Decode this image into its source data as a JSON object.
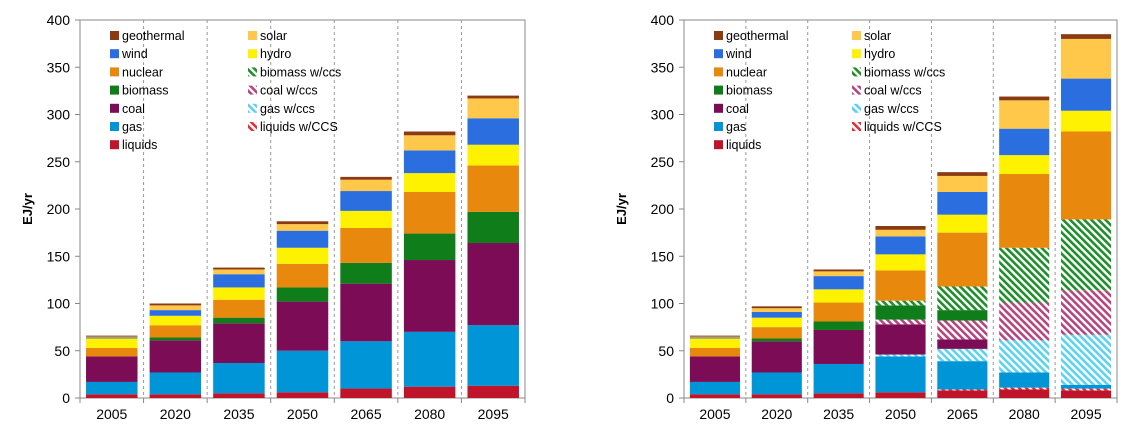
{
  "chart_data": [
    {
      "type": "bar",
      "stacked": true,
      "ylabel": "EJ/yr",
      "ylim": [
        0,
        400
      ],
      "yticks": [
        0,
        50,
        100,
        150,
        200,
        250,
        300,
        350,
        400
      ],
      "grid": "vertical dashed",
      "legend": "top-left",
      "categories": [
        "2005",
        "2020",
        "2035",
        "2050",
        "2065",
        "2080",
        "2095"
      ],
      "series": [
        {
          "name": "liquids",
          "color": "#C0142A",
          "pattern": "solid",
          "values": [
            4,
            4,
            5,
            6,
            10,
            12,
            13
          ]
        },
        {
          "name": "liquids w/CCS",
          "color": "#E0303A",
          "pattern": "hatch",
          "values": [
            0,
            0,
            0,
            0,
            0,
            0,
            0
          ]
        },
        {
          "name": "gas",
          "color": "#0095D6",
          "pattern": "solid",
          "values": [
            13,
            23,
            32,
            44,
            50,
            58,
            64
          ]
        },
        {
          "name": "gas w/ccs",
          "color": "#5AD2F0",
          "pattern": "hatch",
          "values": [
            0,
            0,
            0,
            0,
            0,
            0,
            0
          ]
        },
        {
          "name": "coal",
          "color": "#7B0C55",
          "pattern": "solid",
          "values": [
            27,
            34,
            42,
            52,
            61,
            76,
            87
          ]
        },
        {
          "name": "coal w/ccs",
          "color": "#B5457F",
          "pattern": "hatch",
          "values": [
            0,
            0,
            0,
            0,
            0,
            0,
            0
          ]
        },
        {
          "name": "biomass",
          "color": "#0E7D1A",
          "pattern": "solid",
          "values": [
            0,
            3,
            6,
            15,
            22,
            28,
            33
          ]
        },
        {
          "name": "biomass w/ccs",
          "color": "#1E8E2A",
          "pattern": "hatch",
          "values": [
            0,
            0,
            0,
            0,
            0,
            0,
            0
          ]
        },
        {
          "name": "nuclear",
          "color": "#E8880C",
          "pattern": "solid",
          "values": [
            9,
            13,
            19,
            25,
            37,
            44,
            49
          ]
        },
        {
          "name": "hydro",
          "color": "#FFF200",
          "pattern": "solid",
          "values": [
            10,
            10,
            13,
            17,
            18,
            20,
            22
          ]
        },
        {
          "name": "wind",
          "color": "#2B6EE0",
          "pattern": "solid",
          "values": [
            1,
            6,
            14,
            18,
            21,
            24,
            28
          ]
        },
        {
          "name": "solar",
          "color": "#FFC84A",
          "pattern": "solid",
          "values": [
            1,
            5,
            5,
            7,
            12,
            16,
            21
          ]
        },
        {
          "name": "geothermal",
          "color": "#8B3A12",
          "pattern": "solid",
          "values": [
            1,
            2,
            2,
            3,
            3,
            4,
            3
          ]
        }
      ]
    },
    {
      "type": "bar",
      "stacked": true,
      "ylabel": "EJ/yr",
      "ylim": [
        0,
        400
      ],
      "yticks": [
        0,
        50,
        100,
        150,
        200,
        250,
        300,
        350,
        400
      ],
      "grid": "vertical dashed",
      "legend": "top-left",
      "categories": [
        "2005",
        "2020",
        "2035",
        "2050",
        "2065",
        "2080",
        "2095"
      ],
      "series": [
        {
          "name": "liquids",
          "color": "#C0142A",
          "pattern": "solid",
          "values": [
            4,
            4,
            5,
            6,
            8,
            9,
            8
          ]
        },
        {
          "name": "liquids w/CCS",
          "color": "#E0303A",
          "pattern": "hatch",
          "values": [
            0,
            0,
            0,
            0,
            1,
            2,
            2
          ]
        },
        {
          "name": "gas",
          "color": "#0095D6",
          "pattern": "solid",
          "values": [
            13,
            23,
            31,
            38,
            30,
            16,
            4
          ]
        },
        {
          "name": "gas w/ccs",
          "color": "#5AD2F0",
          "pattern": "hatch",
          "values": [
            0,
            0,
            0,
            2,
            13,
            34,
            53
          ]
        },
        {
          "name": "coal",
          "color": "#7B0C55",
          "pattern": "solid",
          "values": [
            27,
            33,
            36,
            32,
            10,
            0,
            0
          ]
        },
        {
          "name": "coal w/ccs",
          "color": "#B5457F",
          "pattern": "hatch",
          "values": [
            0,
            0,
            0,
            5,
            20,
            40,
            47
          ]
        },
        {
          "name": "biomass",
          "color": "#0E7D1A",
          "pattern": "solid",
          "values": [
            0,
            3,
            9,
            15,
            11,
            0,
            0
          ]
        },
        {
          "name": "biomass w/ccs",
          "color": "#1E8E2A",
          "pattern": "hatch",
          "values": [
            0,
            0,
            0,
            5,
            25,
            58,
            75
          ]
        },
        {
          "name": "nuclear",
          "color": "#E8880C",
          "pattern": "solid",
          "values": [
            9,
            12,
            20,
            32,
            57,
            78,
            93
          ]
        },
        {
          "name": "hydro",
          "color": "#FFF200",
          "pattern": "solid",
          "values": [
            10,
            10,
            14,
            17,
            19,
            20,
            22
          ]
        },
        {
          "name": "wind",
          "color": "#2B6EE0",
          "pattern": "solid",
          "values": [
            1,
            6,
            14,
            19,
            24,
            28,
            34
          ]
        },
        {
          "name": "solar",
          "color": "#FFC84A",
          "pattern": "solid",
          "values": [
            1,
            4,
            5,
            7,
            17,
            30,
            42
          ]
        },
        {
          "name": "geothermal",
          "color": "#8B3A12",
          "pattern": "solid",
          "values": [
            1,
            2,
            2,
            4,
            4,
            4,
            5
          ]
        }
      ]
    }
  ]
}
